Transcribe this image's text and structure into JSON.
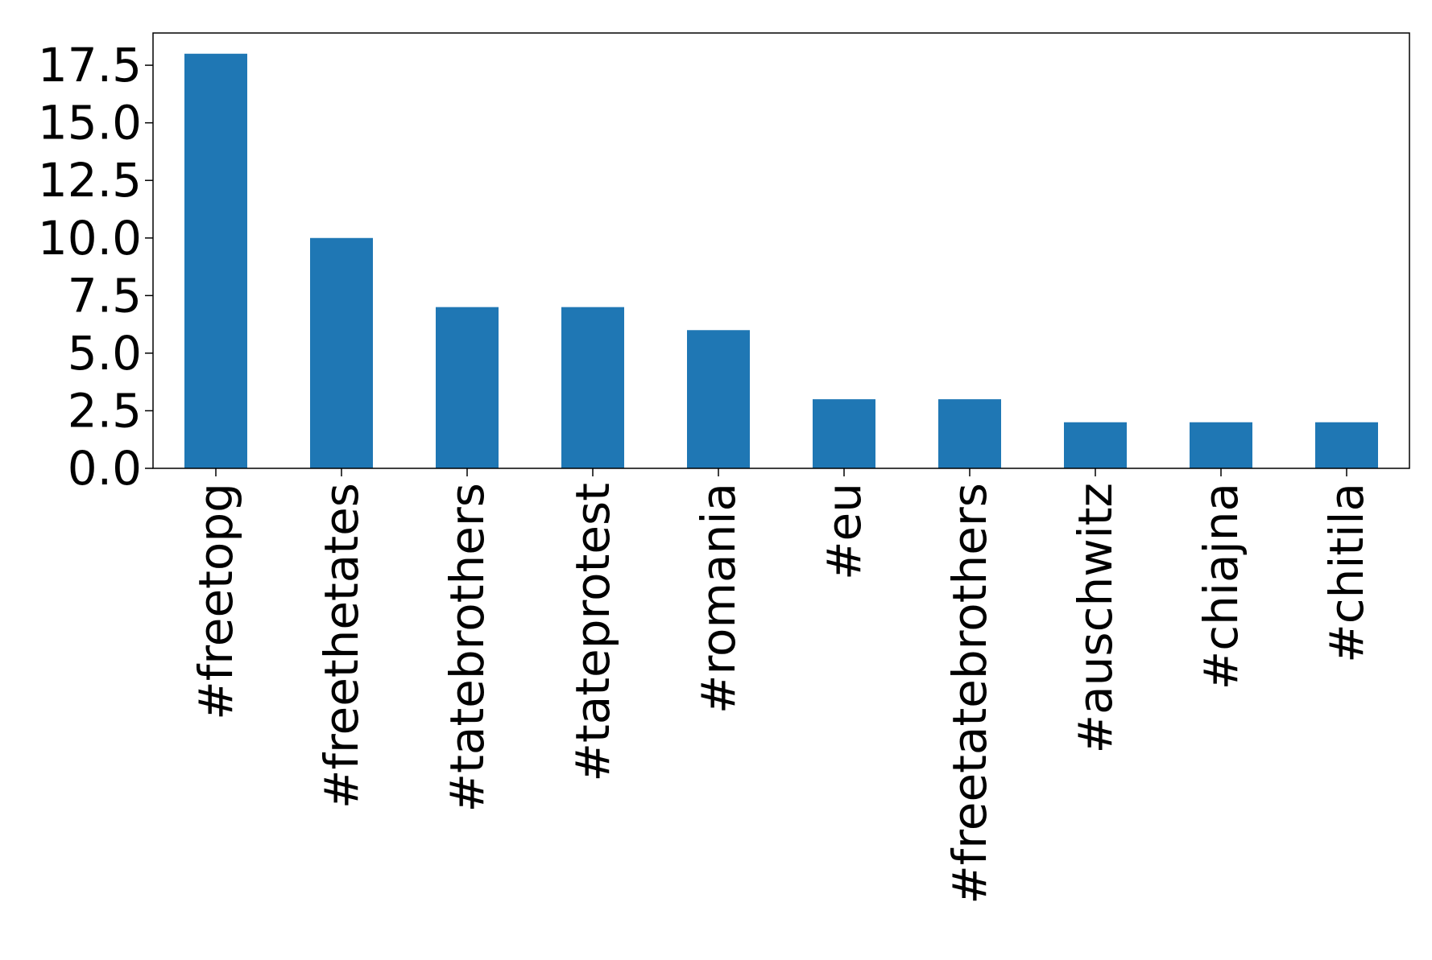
{
  "chart_data": {
    "type": "bar",
    "title": "",
    "xlabel": "",
    "ylabel": "",
    "categories": [
      "#freetopg",
      "#freethetates",
      "#tatebrothers",
      "#tateprotest",
      "#romania",
      "#eu",
      "#freetatebrothers",
      "#auschwitz",
      "#chiajna",
      "#chitila"
    ],
    "values": [
      18,
      10,
      7,
      7,
      6,
      3,
      3,
      2,
      2,
      2
    ],
    "ylim": [
      0,
      18.9
    ],
    "yticks": [
      0.0,
      2.5,
      5.0,
      7.5,
      10.0,
      12.5,
      15.0,
      17.5
    ],
    "ytick_labels": [
      "0.0",
      "2.5",
      "5.0",
      "7.5",
      "10.0",
      "12.5",
      "15.0",
      "17.5"
    ],
    "grid": false,
    "legend": "none",
    "bar_color": "#1f77b4"
  }
}
